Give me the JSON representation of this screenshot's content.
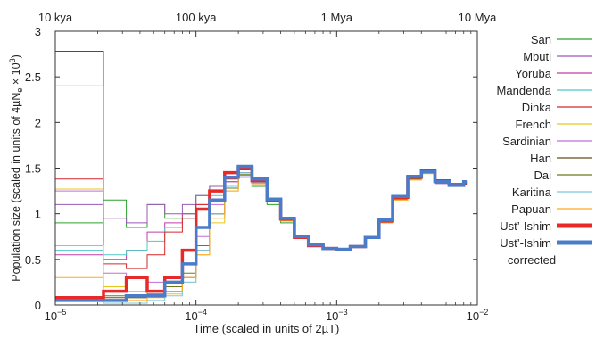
{
  "chart_data": {
    "type": "line",
    "step": true,
    "x_scale": "log",
    "xlim": [
      1e-05,
      0.01
    ],
    "ylim": [
      0,
      3
    ],
    "xlabel": "Time (scaled in units of 2µT)",
    "ylabel": "Population size (scaled in units of 4µN",
    "ylabel_sub": "e",
    "ylabel_tail": " × 10",
    "ylabel_sup": "3",
    "ylabel_close": ")",
    "x_ticks": [
      {
        "value": 1e-05,
        "base": "10",
        "exp": "−5"
      },
      {
        "value": 0.0001,
        "base": "10",
        "exp": "−4"
      },
      {
        "value": 0.001,
        "base": "10",
        "exp": "−3"
      },
      {
        "value": 0.01,
        "base": "10",
        "exp": "−2"
      }
    ],
    "y_ticks": [
      {
        "value": 0,
        "label": "0"
      },
      {
        "value": 0.5,
        "label": "0.5"
      },
      {
        "value": 1,
        "label": "1"
      },
      {
        "value": 1.5,
        "label": "1.5"
      },
      {
        "value": 2,
        "label": "2"
      },
      {
        "value": 2.5,
        "label": "2.5"
      },
      {
        "value": 3,
        "label": "3"
      }
    ],
    "top_axis": [
      {
        "value": 1e-05,
        "label": "10 kya"
      },
      {
        "value": 0.0001,
        "label": "100 kya"
      },
      {
        "value": 0.001,
        "label": "1 Mya"
      },
      {
        "value": 0.01,
        "label": "10 Mya"
      }
    ],
    "grid": false,
    "legend_position": "right",
    "x": [
      1e-05,
      2.2e-05,
      3.2e-05,
      4.5e-05,
      6e-05,
      8e-05,
      0.0001,
      0.000125,
      0.00016,
      0.0002,
      0.00025,
      0.00032,
      0.0004,
      0.0005,
      0.00063,
      0.0008,
      0.001,
      0.00125,
      0.0016,
      0.002,
      0.0025,
      0.0032,
      0.004,
      0.005,
      0.0063,
      0.008
    ],
    "series": [
      {
        "name": "San",
        "color": "#2ca02c",
        "width": 1,
        "values": [
          0.9,
          1.15,
          0.85,
          1.1,
          0.95,
          1.0,
          1.2,
          1.3,
          1.4,
          1.4,
          1.3,
          1.1,
          0.9,
          0.75,
          0.66,
          0.63,
          0.62,
          0.65,
          0.75,
          0.95,
          1.2,
          1.42,
          1.46,
          1.35,
          1.32,
          1.34
        ]
      },
      {
        "name": "Mbuti",
        "color": "#9b59b6",
        "width": 1,
        "values": [
          1.1,
          0.95,
          0.9,
          1.1,
          1.0,
          1.1,
          1.2,
          1.3,
          1.35,
          1.45,
          1.35,
          1.15,
          0.95,
          0.75,
          0.66,
          0.62,
          0.61,
          0.64,
          0.74,
          0.92,
          1.18,
          1.4,
          1.45,
          1.33,
          1.3,
          1.35
        ]
      },
      {
        "name": "Yoruba",
        "color": "#c33ca0",
        "width": 1,
        "values": [
          0.55,
          0.5,
          0.6,
          0.8,
          0.9,
          1.0,
          1.1,
          1.25,
          1.35,
          1.45,
          1.35,
          1.15,
          0.94,
          0.74,
          0.65,
          0.62,
          0.61,
          0.64,
          0.73,
          0.92,
          1.17,
          1.38,
          1.47,
          1.36,
          1.32,
          1.33
        ]
      },
      {
        "name": "Mandenda",
        "color": "#4fc7c7",
        "width": 1,
        "values": [
          0.6,
          0.55,
          0.6,
          0.7,
          0.85,
          0.95,
          1.05,
          1.2,
          1.3,
          1.42,
          1.33,
          1.14,
          0.93,
          0.74,
          0.65,
          0.62,
          0.61,
          0.64,
          0.73,
          0.91,
          1.16,
          1.38,
          1.45,
          1.34,
          1.31,
          1.34
        ]
      },
      {
        "name": "Dinka",
        "color": "#d62728",
        "width": 1,
        "values": [
          1.38,
          0.45,
          0.4,
          0.55,
          0.8,
          0.95,
          1.1,
          1.25,
          1.38,
          1.48,
          1.36,
          1.15,
          0.94,
          0.74,
          0.65,
          0.62,
          0.61,
          0.64,
          0.74,
          0.92,
          1.18,
          1.4,
          1.47,
          1.36,
          1.3,
          1.35
        ]
      },
      {
        "name": "French",
        "color": "#e8c619",
        "width": 1,
        "values": [
          1.27,
          0.2,
          0.15,
          0.1,
          0.12,
          0.25,
          0.55,
          0.9,
          1.25,
          1.4,
          1.33,
          1.13,
          0.93,
          0.74,
          0.65,
          0.62,
          0.61,
          0.64,
          0.73,
          0.9,
          1.15,
          1.37,
          1.44,
          1.34,
          1.3,
          1.33
        ]
      },
      {
        "name": "Sardinian",
        "color": "#c06fd6",
        "width": 1,
        "values": [
          1.25,
          0.35,
          0.3,
          0.25,
          0.3,
          0.45,
          0.75,
          1.1,
          1.3,
          1.42,
          1.33,
          1.13,
          0.93,
          0.74,
          0.65,
          0.62,
          0.61,
          0.64,
          0.73,
          0.91,
          1.16,
          1.38,
          1.45,
          1.34,
          1.31,
          1.33
        ]
      },
      {
        "name": "Han",
        "color": "#6b4a1a",
        "width": 1,
        "values": [
          2.78,
          0.08,
          0.08,
          0.1,
          0.15,
          0.3,
          0.6,
          1.0,
          1.3,
          1.45,
          1.34,
          1.14,
          0.93,
          0.74,
          0.65,
          0.62,
          0.61,
          0.64,
          0.73,
          0.91,
          1.17,
          1.39,
          1.46,
          1.35,
          1.31,
          1.32
        ]
      },
      {
        "name": "Dai",
        "color": "#6b7a1a",
        "width": 1,
        "values": [
          2.4,
          0.1,
          0.08,
          0.12,
          0.2,
          0.35,
          0.65,
          1.0,
          1.28,
          1.43,
          1.33,
          1.13,
          0.93,
          0.74,
          0.65,
          0.62,
          0.61,
          0.64,
          0.73,
          0.91,
          1.16,
          1.38,
          1.45,
          1.34,
          1.3,
          1.33
        ]
      },
      {
        "name": "Karitina",
        "color": "#7ec8e3",
        "width": 1,
        "values": [
          0.65,
          0.02,
          0.02,
          0.05,
          0.1,
          0.25,
          0.6,
          1.0,
          1.3,
          1.45,
          1.34,
          1.14,
          0.93,
          0.74,
          0.65,
          0.62,
          0.61,
          0.64,
          0.73,
          0.91,
          1.17,
          1.39,
          1.46,
          1.35,
          1.31,
          1.34
        ]
      },
      {
        "name": "Papuan",
        "color": "#ffa91f",
        "width": 1,
        "values": [
          0.3,
          0.05,
          0.05,
          0.08,
          0.15,
          0.3,
          0.55,
          0.95,
          1.25,
          1.4,
          1.33,
          1.13,
          0.92,
          0.74,
          0.65,
          0.62,
          0.61,
          0.64,
          0.73,
          0.9,
          1.15,
          1.37,
          1.44,
          1.34,
          1.3,
          1.34
        ]
      },
      {
        "name": "Ust’-Ishim",
        "color": "#e8292a",
        "width": 3.5,
        "values": [
          0.08,
          0.15,
          0.3,
          0.15,
          0.3,
          0.6,
          1.05,
          1.25,
          1.45,
          1.5,
          1.36,
          1.15,
          0.94,
          0.74,
          0.65,
          0.62,
          0.61,
          0.64,
          0.74,
          0.92,
          1.18,
          1.4,
          1.47,
          1.36,
          1.32,
          1.34
        ]
      },
      {
        "name": "Ust’-Ishim corrected",
        "name_lines": [
          "Ust’-Ishim",
          "corrected"
        ],
        "color": "#4a7cc9",
        "width": 3.5,
        "values": [
          0.05,
          0.05,
          0.1,
          0.1,
          0.25,
          0.45,
          0.85,
          1.15,
          1.4,
          1.52,
          1.38,
          1.16,
          0.95,
          0.75,
          0.66,
          0.62,
          0.61,
          0.64,
          0.74,
          0.93,
          1.19,
          1.41,
          1.46,
          1.35,
          1.31,
          1.35
        ]
      }
    ]
  }
}
